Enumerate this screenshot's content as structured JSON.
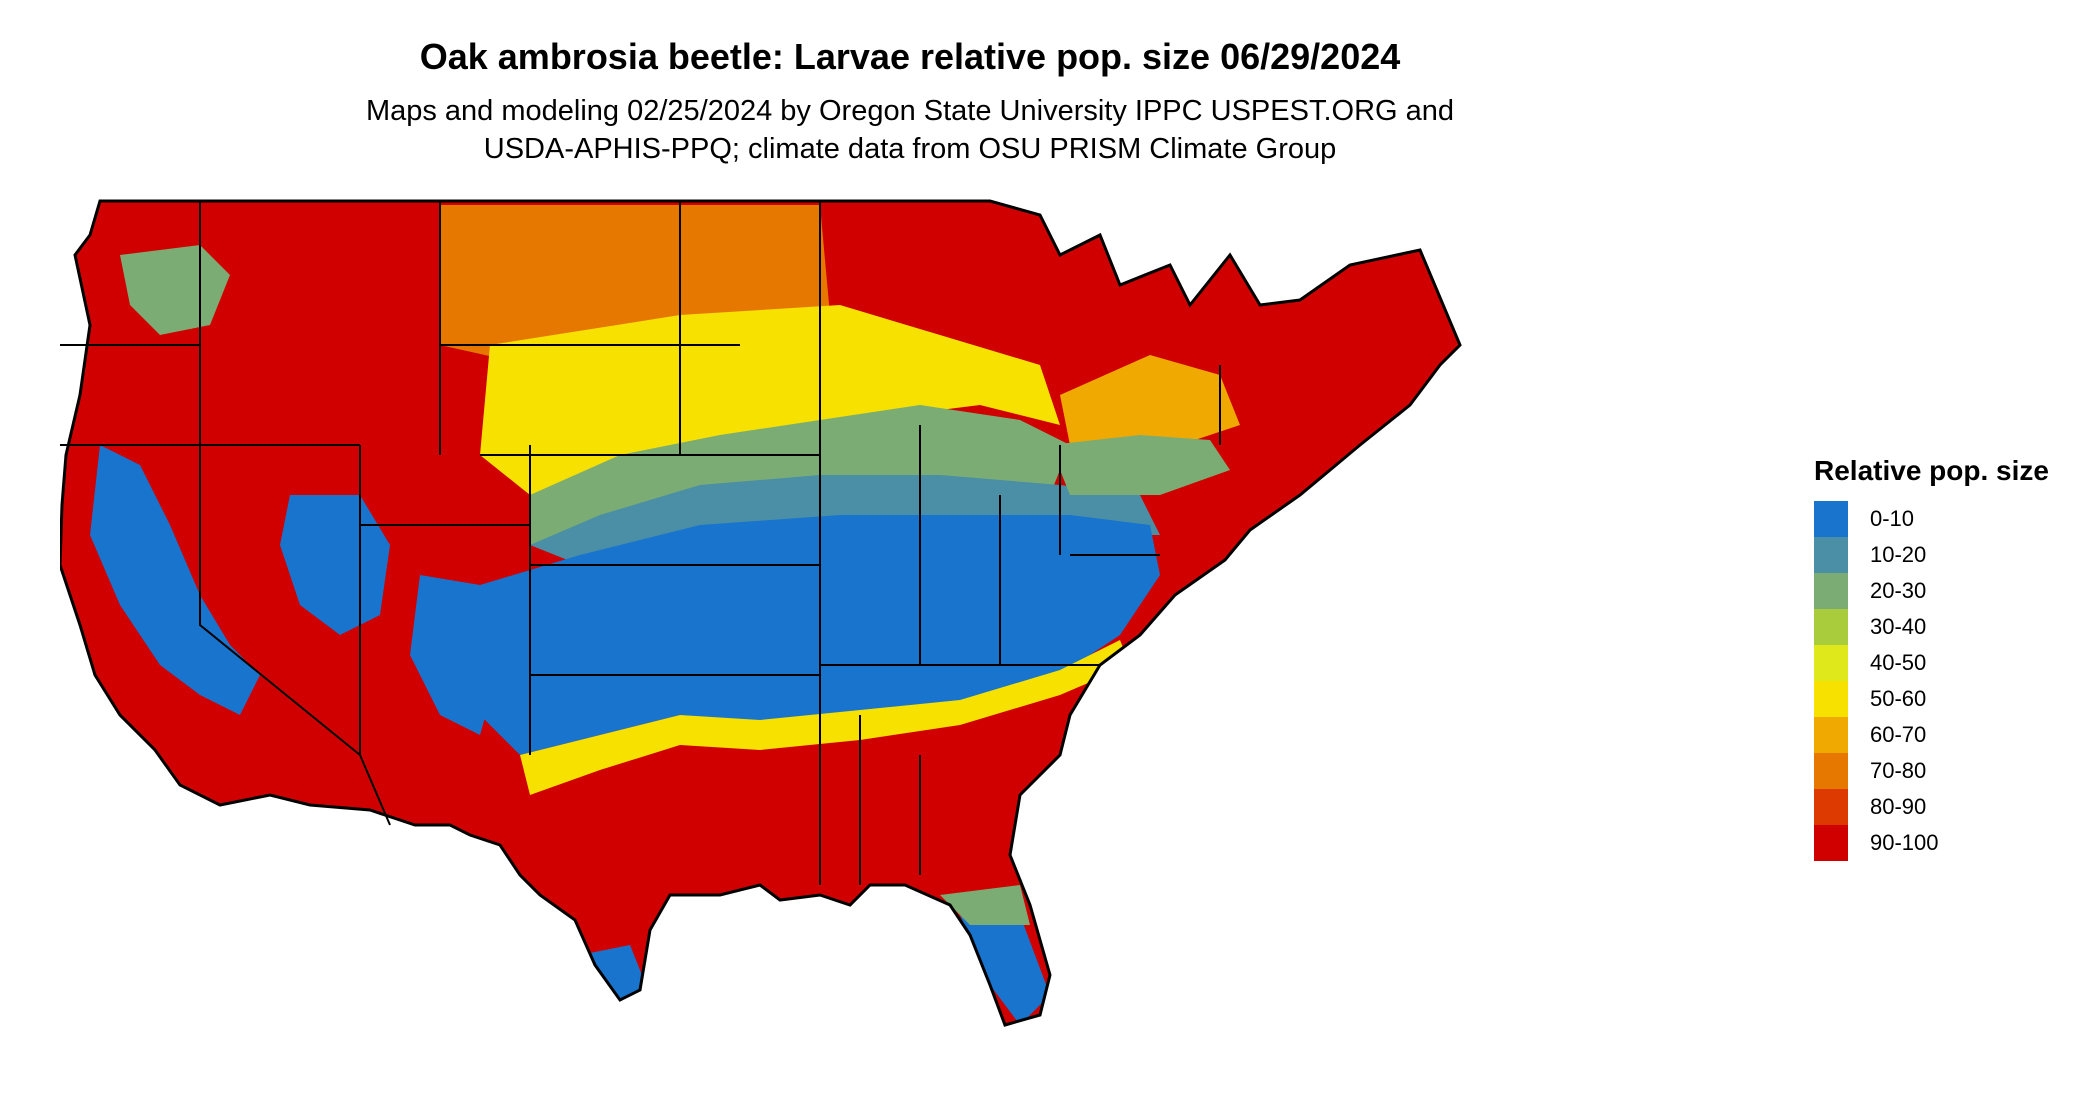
{
  "title": "Oak ambrosia beetle: Larvae relative pop. size 06/29/2024",
  "subtitle_lines": [
    "Maps and modeling 02/25/2024 by Oregon State University IPPC USPEST.ORG and",
    "USDA-APHIS-PPQ; climate data from OSU PRISM Climate Group"
  ],
  "legend": {
    "title": "Relative pop. size",
    "items": [
      {
        "label": "0-10",
        "color": "#1874cd"
      },
      {
        "label": "10-20",
        "color": "#4a8fa6"
      },
      {
        "label": "20-30",
        "color": "#7aac74"
      },
      {
        "label": "30-40",
        "color": "#a8cc3c"
      },
      {
        "label": "40-50",
        "color": "#dfe81b"
      },
      {
        "label": "50-60",
        "color": "#f6e100"
      },
      {
        "label": "60-70",
        "color": "#f0a900"
      },
      {
        "label": "70-80",
        "color": "#e67800"
      },
      {
        "label": "80-90",
        "color": "#dc3a00"
      },
      {
        "label": "90-100",
        "color": "#d00000"
      }
    ]
  }
}
